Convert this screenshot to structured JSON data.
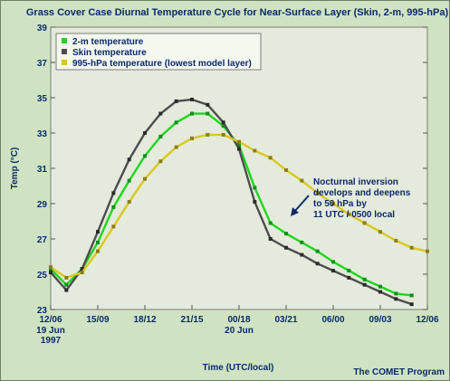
{
  "chart_data": {
    "type": "line",
    "title": "Grass Cover Case Diurnal Temperature Cycle for Near-Surface Layer (Skin, 2-m, 995-hPa)",
    "xlabel": "Time (UTC/local)",
    "ylabel": "Temp (°C)",
    "ylim": [
      23,
      39
    ],
    "y_ticks": [
      23,
      25,
      27,
      29,
      31,
      33,
      35,
      37,
      39
    ],
    "x_ticks": [
      "12/06",
      "15/09",
      "18/12",
      "21/15",
      "00/18",
      "03/21",
      "06/00",
      "09/03",
      "12/06"
    ],
    "x_tick_sublabels": {
      "0": [
        "19 Jun",
        "1997"
      ],
      "4": [
        "20 Jun"
      ]
    },
    "x_range_hours": [
      0,
      24
    ],
    "series": [
      {
        "name": "2-m temperature",
        "color": "#1fd61f",
        "values": [
          [
            0,
            25.3
          ],
          [
            1,
            24.4
          ],
          [
            2,
            25.3
          ],
          [
            3,
            26.8
          ],
          [
            4,
            28.8
          ],
          [
            5,
            30.3
          ],
          [
            6,
            31.7
          ],
          [
            7,
            32.8
          ],
          [
            8,
            33.6
          ],
          [
            9,
            34.1
          ],
          [
            10,
            34.1
          ],
          [
            11,
            33.4
          ],
          [
            12,
            32.3
          ],
          [
            13,
            29.9
          ],
          [
            14,
            27.9
          ],
          [
            15,
            27.3
          ],
          [
            16,
            26.8
          ],
          [
            17,
            26.3
          ],
          [
            18,
            25.7
          ],
          [
            19,
            25.2
          ],
          [
            20,
            24.7
          ],
          [
            21,
            24.3
          ],
          [
            22,
            23.9
          ],
          [
            23,
            23.8
          ]
        ]
      },
      {
        "name": "Skin temperature",
        "color": "#4d4d4d",
        "values": [
          [
            0,
            25.1
          ],
          [
            1,
            24.1
          ],
          [
            2,
            25.3
          ],
          [
            3,
            27.4
          ],
          [
            4,
            29.6
          ],
          [
            5,
            31.5
          ],
          [
            6,
            33.0
          ],
          [
            7,
            34.1
          ],
          [
            8,
            34.8
          ],
          [
            9,
            34.9
          ],
          [
            10,
            34.6
          ],
          [
            11,
            33.6
          ],
          [
            12,
            32.1
          ],
          [
            13,
            29.1
          ],
          [
            14,
            27.0
          ],
          [
            15,
            26.5
          ],
          [
            16,
            26.1
          ],
          [
            17,
            25.6
          ],
          [
            18,
            25.2
          ],
          [
            19,
            24.8
          ],
          [
            20,
            24.4
          ],
          [
            21,
            24.0
          ],
          [
            22,
            23.6
          ],
          [
            23,
            23.3
          ]
        ]
      },
      {
        "name": "995-hPa temperature (lowest model layer)",
        "color": "#d9c81e",
        "values": [
          [
            0,
            25.4
          ],
          [
            1,
            24.8
          ],
          [
            2,
            25.1
          ],
          [
            3,
            26.3
          ],
          [
            4,
            27.7
          ],
          [
            5,
            29.1
          ],
          [
            6,
            30.4
          ],
          [
            7,
            31.4
          ],
          [
            8,
            32.2
          ],
          [
            9,
            32.7
          ],
          [
            10,
            32.9
          ],
          [
            11,
            32.9
          ],
          [
            12,
            32.5
          ],
          [
            13,
            32.0
          ],
          [
            14,
            31.6
          ],
          [
            15,
            30.9
          ],
          [
            16,
            30.3
          ],
          [
            17,
            29.6
          ],
          [
            18,
            29.0
          ],
          [
            19,
            28.4
          ],
          [
            20,
            27.9
          ],
          [
            21,
            27.4
          ],
          [
            22,
            26.9
          ],
          [
            23,
            26.5
          ],
          [
            24,
            26.3
          ]
        ]
      }
    ],
    "legend_position": "top-left",
    "grid": false,
    "annotation": [
      "Nocturnal inversion",
      "develops and deepens",
      "to 50 hPa by",
      "11 UTC / 0500 local"
    ],
    "credit": "The COMET Program"
  }
}
